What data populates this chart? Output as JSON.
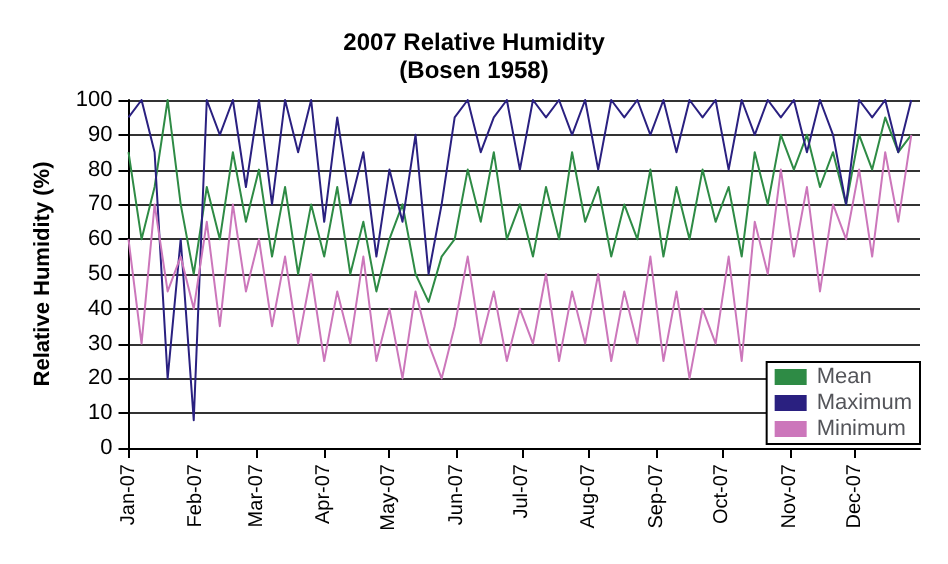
{
  "chart_data": {
    "type": "line",
    "title": "2007 Relative Humidity",
    "subtitle": "(Bosen 1958)",
    "ylabel": "Relative Humidity (%)",
    "x": [
      "2007-01-01",
      "2007-01-07",
      "2007-01-13",
      "2007-01-19",
      "2007-01-25",
      "2007-01-31",
      "2007-02-06",
      "2007-02-12",
      "2007-02-18",
      "2007-02-24",
      "2007-03-02",
      "2007-03-08",
      "2007-03-14",
      "2007-03-20",
      "2007-03-26",
      "2007-04-01",
      "2007-04-07",
      "2007-04-13",
      "2007-04-19",
      "2007-04-25",
      "2007-05-01",
      "2007-05-07",
      "2007-05-13",
      "2007-05-19",
      "2007-05-25",
      "2007-05-31",
      "2007-06-06",
      "2007-06-12",
      "2007-06-18",
      "2007-06-24",
      "2007-06-30",
      "2007-07-06",
      "2007-07-12",
      "2007-07-18",
      "2007-07-24",
      "2007-07-30",
      "2007-08-05",
      "2007-08-11",
      "2007-08-17",
      "2007-08-23",
      "2007-08-29",
      "2007-09-04",
      "2007-09-10",
      "2007-09-16",
      "2007-09-22",
      "2007-09-28",
      "2007-10-04",
      "2007-10-10",
      "2007-10-16",
      "2007-10-22",
      "2007-10-28",
      "2007-11-03",
      "2007-11-09",
      "2007-11-15",
      "2007-11-21",
      "2007-11-27",
      "2007-12-03",
      "2007-12-09",
      "2007-12-15",
      "2007-12-21",
      "2007-12-27"
    ],
    "series": [
      {
        "name": "Mean",
        "color": "#2e8b45",
        "values": [
          85,
          60,
          75,
          100,
          70,
          50,
          75,
          60,
          85,
          65,
          80,
          55,
          75,
          50,
          70,
          55,
          75,
          50,
          65,
          45,
          60,
          70,
          50,
          42,
          55,
          60,
          80,
          65,
          85,
          60,
          70,
          55,
          75,
          60,
          85,
          65,
          75,
          55,
          70,
          60,
          80,
          55,
          75,
          60,
          80,
          65,
          75,
          55,
          85,
          70,
          90,
          80,
          90,
          75,
          85,
          70,
          90,
          80,
          95,
          85,
          90
        ]
      },
      {
        "name": "Maximum",
        "color": "#2a2080",
        "values": [
          95,
          100,
          85,
          20,
          60,
          8,
          100,
          90,
          100,
          75,
          100,
          70,
          100,
          85,
          100,
          65,
          95,
          70,
          85,
          55,
          80,
          65,
          90,
          50,
          70,
          95,
          100,
          85,
          95,
          100,
          80,
          100,
          95,
          100,
          90,
          100,
          80,
          100,
          95,
          100,
          90,
          100,
          85,
          100,
          95,
          100,
          80,
          100,
          90,
          100,
          95,
          100,
          85,
          100,
          90,
          70,
          100,
          95,
          100,
          85,
          100
        ]
      },
      {
        "name": "Minimum",
        "color": "#cc77bb",
        "values": [
          60,
          30,
          70,
          45,
          55,
          40,
          65,
          35,
          70,
          45,
          60,
          35,
          55,
          30,
          50,
          25,
          45,
          30,
          55,
          25,
          40,
          20,
          45,
          30,
          20,
          35,
          55,
          30,
          45,
          25,
          40,
          30,
          50,
          25,
          45,
          30,
          50,
          25,
          45,
          30,
          55,
          25,
          45,
          20,
          40,
          30,
          55,
          25,
          65,
          50,
          80,
          55,
          75,
          45,
          70,
          60,
          80,
          55,
          85,
          65,
          90
        ]
      }
    ],
    "xlim": [
      "2007-01-01",
      "2007-12-31"
    ],
    "xticks": [
      {
        "value": "2007-01-01",
        "label": "Jan-07"
      },
      {
        "value": "2007-02-01",
        "label": "Feb-07"
      },
      {
        "value": "2007-03-01",
        "label": "Mar-07"
      },
      {
        "value": "2007-04-01",
        "label": "Apr-07"
      },
      {
        "value": "2007-05-01",
        "label": "May-07"
      },
      {
        "value": "2007-06-01",
        "label": "Jun-07"
      },
      {
        "value": "2007-07-01",
        "label": "Jul-07"
      },
      {
        "value": "2007-08-01",
        "label": "Aug-07"
      },
      {
        "value": "2007-09-01",
        "label": "Sep-07"
      },
      {
        "value": "2007-10-01",
        "label": "Oct-07"
      },
      {
        "value": "2007-11-01",
        "label": "Nov-07"
      },
      {
        "value": "2007-12-01",
        "label": "Dec-07"
      }
    ],
    "ylim": [
      0,
      100
    ],
    "yticks": [
      0,
      10,
      20,
      30,
      40,
      50,
      60,
      70,
      80,
      90,
      100
    ],
    "grid": "y",
    "legend": "bottom right",
    "marker": "none",
    "line_style": "solid"
  }
}
